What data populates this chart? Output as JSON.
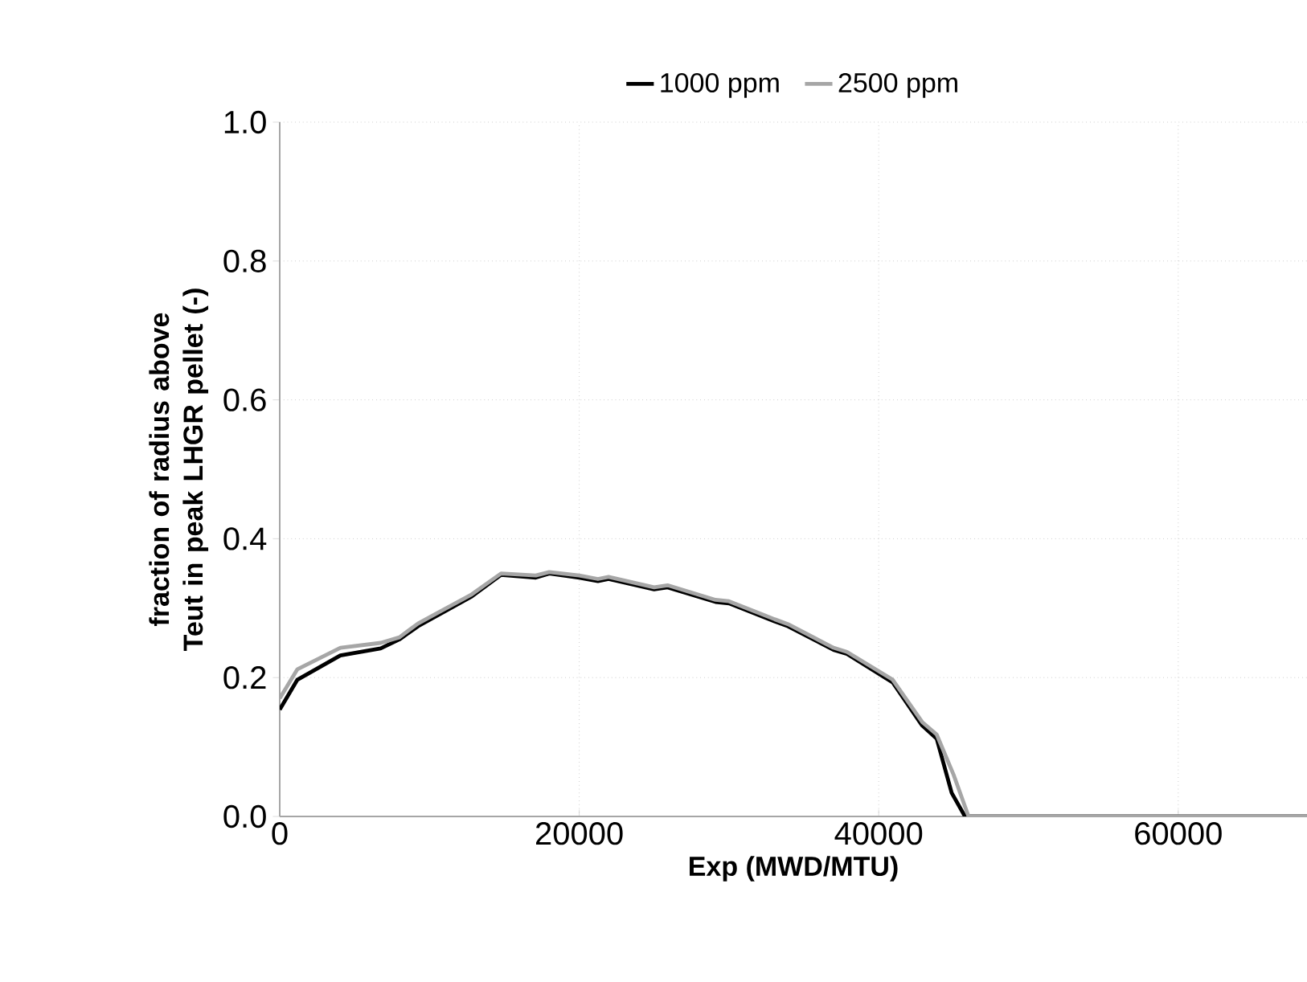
{
  "chart_data": {
    "type": "line",
    "xlabel": "Exp (MWD/MTU)",
    "ylabel": "fraction of radius above Teut in peak LHGR pellet (-)",
    "xlim": [
      0,
      68600
    ],
    "ylim": [
      0,
      1
    ],
    "xticks": [
      0,
      20000,
      40000,
      60000
    ],
    "yticks": [
      {
        "value": 0,
        "label": "0.0"
      },
      {
        "value": 0.2,
        "label": "0.2"
      },
      {
        "value": 0.4,
        "label": "0.4"
      },
      {
        "value": 0.6,
        "label": "0.6"
      },
      {
        "value": 0.8,
        "label": "0.8"
      },
      {
        "value": 1,
        "label": "1.0"
      }
    ],
    "grid": true,
    "legend": "top",
    "marker": "none",
    "line_style": "solid",
    "series": [
      {
        "name": "1000 ppm",
        "color": "#000000",
        "x": [
          0,
          1180,
          4050,
          6740,
          7990,
          9240,
          12830,
          14780,
          17100,
          18000,
          20000,
          21250,
          21960,
          25000,
          25900,
          29100,
          30000,
          33050,
          33940,
          36980,
          37880,
          40930,
          42900,
          43870,
          44870,
          45760,
          68600
        ],
        "values": [
          0.154,
          0.197,
          0.232,
          0.242,
          0.255,
          0.274,
          0.317,
          0.348,
          0.344,
          0.35,
          0.344,
          0.339,
          0.342,
          0.327,
          0.33,
          0.309,
          0.307,
          0.281,
          0.274,
          0.24,
          0.234,
          0.193,
          0.131,
          0.112,
          0.034,
          0,
          0
        ]
      },
      {
        "name": "2500 ppm",
        "color": "#a6a6a6",
        "x": [
          0,
          1180,
          4050,
          6740,
          7990,
          9240,
          12830,
          14780,
          17100,
          18000,
          20000,
          21250,
          21960,
          25000,
          25900,
          29100,
          30000,
          33050,
          33940,
          36980,
          37880,
          40930,
          42900,
          43870,
          45000,
          46000,
          68600
        ],
        "values": [
          0.17,
          0.212,
          0.243,
          0.25,
          0.258,
          0.278,
          0.32,
          0.35,
          0.347,
          0.352,
          0.347,
          0.342,
          0.345,
          0.33,
          0.333,
          0.312,
          0.31,
          0.284,
          0.277,
          0.243,
          0.237,
          0.197,
          0.136,
          0.118,
          0.06,
          0,
          0
        ]
      }
    ]
  }
}
